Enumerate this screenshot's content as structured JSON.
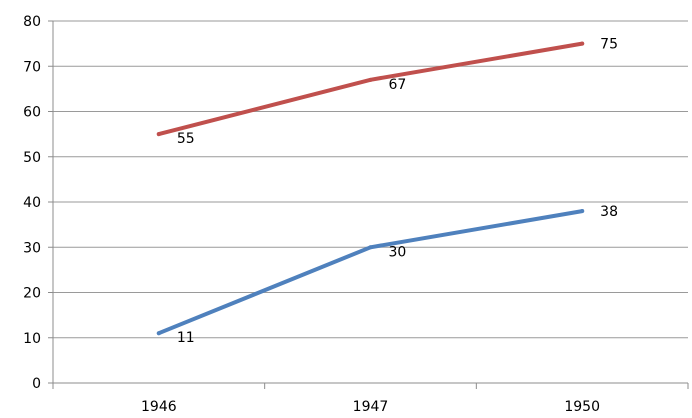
{
  "chart_data": {
    "type": "line",
    "categories": [
      "1946",
      "1947",
      "1950"
    ],
    "series": [
      {
        "values": [
          55,
          67,
          75
        ],
        "color": "#c0504d"
      },
      {
        "values": [
          11,
          30,
          38
        ],
        "color": "#4f81bd"
      }
    ],
    "ylim": [
      0,
      80
    ],
    "yticks": [
      0,
      10,
      20,
      30,
      40,
      50,
      60,
      70,
      80
    ],
    "grid": true,
    "legend": "none"
  }
}
